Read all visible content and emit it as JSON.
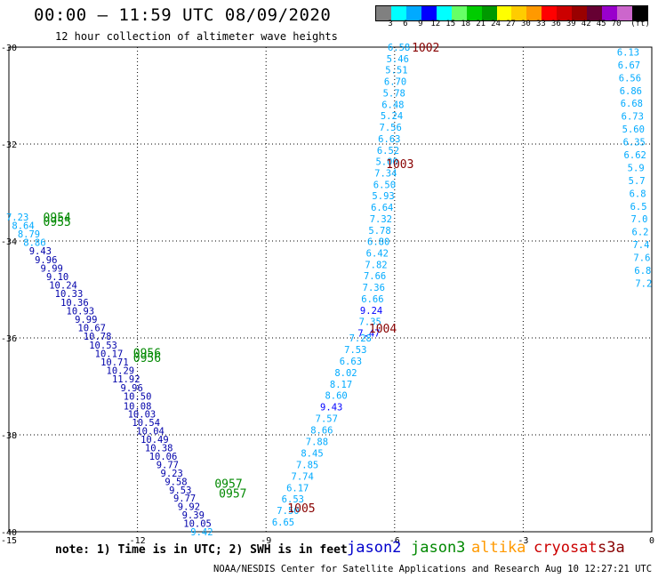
{
  "title": "00:00 – 11:59 UTC 08/09/2020",
  "subtitle": "12 hour collection of altimeter wave heights",
  "note": "note: 1) Time is in UTC; 2) SWH is in feet",
  "credit": "NOAA/NESDIS Center for Satellite Applications and Research   Aug 10 12:27:21 UTC 2020",
  "satellites": [
    {
      "name": "jason2",
      "color": "#0000cc"
    },
    {
      "name": "jason3",
      "color": "#008800"
    },
    {
      "name": "altika",
      "color": "#ff9900"
    },
    {
      "name": "cryosat",
      "color": "#cc0000"
    },
    {
      "name": "s3a",
      "color": "#880000"
    }
  ],
  "legend": {
    "colors": [
      "#808080",
      "#00ffff",
      "#00aaff",
      "#0000ff",
      "#00ffff",
      "#66ff66",
      "#00cc00",
      "#009900",
      "#ffff00",
      "#ffcc00",
      "#ff9900",
      "#ff0000",
      "#cc0000",
      "#990000",
      "#660033",
      "#9900cc",
      "#cc66cc",
      "#000000"
    ],
    "ticks": [
      "3",
      "6",
      "9",
      "12",
      "15",
      "18",
      "21",
      "24",
      "27",
      "30",
      "33",
      "36",
      "39",
      "42",
      "45",
      "70",
      "(ft)"
    ]
  },
  "map": {
    "lon_min": -15,
    "lon_max": 0,
    "lat_min": -40,
    "lat_max": -30,
    "x_ticks": [
      -15,
      -12,
      -9,
      -6,
      -3,
      0
    ],
    "y_ticks": [
      -30,
      -32,
      -34,
      -36,
      -38,
      -40
    ],
    "tracks": [
      {
        "name": "track-east-upper",
        "lon_start": -5.9,
        "lat_start": -30,
        "lon_end": -6.6,
        "lat_end": -35.9,
        "values": [
          "6.58",
          "5.46",
          "5.51",
          "6.70",
          "5.78",
          "6.48",
          "5.24",
          "7.56",
          "6.63",
          "6.52",
          "5.00",
          "7.34",
          "6.50",
          "5.93",
          "6.64",
          "7.32",
          "5.78",
          "6.80",
          "6.42",
          "7.82",
          "7.66",
          "7.36",
          "6.66",
          "9.24",
          "7.35",
          "7.47"
        ],
        "colors": [
          "#00aaff",
          "#00aaff",
          "#00aaff",
          "#00aaff",
          "#00aaff",
          "#00aaff",
          "#00aaff",
          "#00aaff",
          "#00aaff",
          "#00aaff",
          "#00aaff",
          "#00aaff",
          "#00aaff",
          "#00aaff",
          "#00aaff",
          "#00aaff",
          "#00aaff",
          "#00aaff",
          "#00aaff",
          "#00aaff",
          "#00aaff",
          "#00aaff",
          "#00aaff",
          "#0000ff",
          "#00aaff",
          "#0000ff"
        ]
      },
      {
        "name": "track-east-lower",
        "lon_start": -6.8,
        "lat_start": -36.0,
        "lon_end": -8.6,
        "lat_end": -39.8,
        "values": [
          "7.28",
          "7.53",
          "6.63",
          "8.02",
          "8.17",
          "8.60",
          "9.43",
          "7.57",
          "8.66",
          "7.88",
          "8.45",
          "7.85",
          "7.74",
          "6.17",
          "6.53",
          "7.50",
          "6.65"
        ],
        "colors": [
          "#00aaff",
          "#00aaff",
          "#00aaff",
          "#00aaff",
          "#00aaff",
          "#00aaff",
          "#0000ff",
          "#00aaff",
          "#00aaff",
          "#00aaff",
          "#00aaff",
          "#00aaff",
          "#00aaff",
          "#00aaff",
          "#00aaff",
          "#00aaff",
          "#00aaff"
        ]
      },
      {
        "name": "track-west-upper",
        "lon_start": -14.8,
        "lat_start": -33.5,
        "lon_end": -12.0,
        "lat_end": -37.2,
        "values": [
          "7.23",
          "8.64",
          "8.79",
          "8.86",
          "9.43",
          "9.96",
          "9.99",
          "9.10",
          "10.24",
          "10.33",
          "10.36",
          "10.93",
          "9.99",
          "10.67",
          "10.78",
          "10.53",
          "10.17",
          "10.71",
          "10.29",
          "11.92",
          "9.96",
          "10.50"
        ],
        "colors": [
          "#00aaff",
          "#00aaff",
          "#00aaff",
          "#00aaff",
          "#0000aa",
          "#0000aa",
          "#0000aa",
          "#0000aa",
          "#0000aa",
          "#0000aa",
          "#0000aa",
          "#0000aa",
          "#0000aa",
          "#0000aa",
          "#0000aa",
          "#0000aa",
          "#0000aa",
          "#0000aa",
          "#0000aa",
          "#0000aa",
          "#0000aa",
          "#0000aa"
        ]
      },
      {
        "name": "track-west-lower",
        "lon_start": -12.0,
        "lat_start": -37.4,
        "lon_end": -10.5,
        "lat_end": -40.0,
        "values": [
          "10.08",
          "10.03",
          "10.54",
          "10.04",
          "10.49",
          "10.38",
          "10.06",
          "9.77",
          "9.23",
          "9.58",
          "9.53",
          "9.77",
          "9.92",
          "9.39",
          "10.05",
          "9.42"
        ],
        "colors": [
          "#0000aa",
          "#0000aa",
          "#0000aa",
          "#0000aa",
          "#0000aa",
          "#0000aa",
          "#0000aa",
          "#0000aa",
          "#0000aa",
          "#0000aa",
          "#0000aa",
          "#0000aa",
          "#0000aa",
          "#0000aa",
          "#0000aa",
          "#00aaff"
        ]
      }
    ],
    "edge_values": [
      "6.13",
      "6.67",
      "6.56",
      "6.86",
      "6.68",
      "6.73",
      "5.60",
      "6.35",
      "6.62",
      "5.9",
      "5.7",
      "6.8",
      "6.5",
      "7.0",
      "6.2",
      "7.4",
      "7.6",
      "6.8",
      "7.2"
    ],
    "time_labels": [
      {
        "text": "1002",
        "lon": -5.6,
        "lat": -30.0,
        "color": "#880000"
      },
      {
        "text": "1003",
        "lon": -6.2,
        "lat": -32.4,
        "color": "#880000"
      },
      {
        "text": "1004",
        "lon": -6.6,
        "lat": -35.8,
        "color": "#880000"
      },
      {
        "text": "1005",
        "lon": -8.5,
        "lat": -39.5,
        "color": "#880000"
      },
      {
        "text": "0954",
        "lon": -14.2,
        "lat": -33.5,
        "color": "#008800"
      },
      {
        "text": "0955",
        "lon": -14.2,
        "lat": -33.6,
        "color": "#008800"
      },
      {
        "text": "0956",
        "lon": -12.1,
        "lat": -36.3,
        "color": "#008800"
      },
      {
        "text": "0956",
        "lon": -12.1,
        "lat": -36.4,
        "color": "#008800"
      },
      {
        "text": "0957",
        "lon": -10.2,
        "lat": -39.0,
        "color": "#008800"
      },
      {
        "text": "0957",
        "lon": -10.1,
        "lat": -39.2,
        "color": "#008800"
      }
    ]
  }
}
